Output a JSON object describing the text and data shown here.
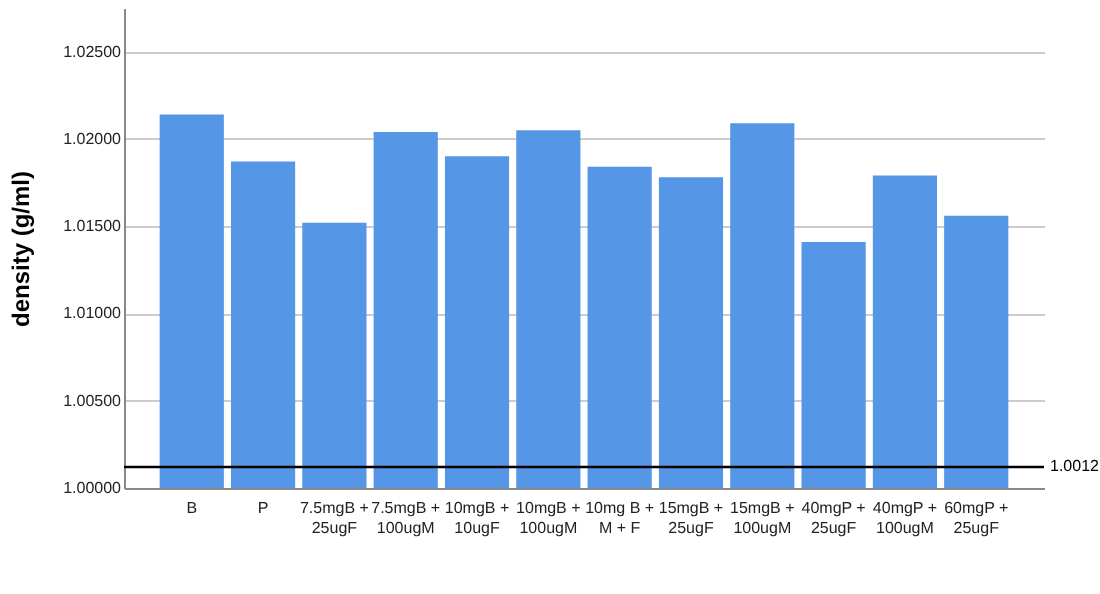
{
  "chart_data": {
    "type": "bar",
    "ylabel": "density (g/ml)",
    "categories": [
      "B",
      "P",
      "7.5mgB + 25ugF",
      "7.5mgB + 100ugM",
      "10mgB + 10ugF",
      "10mgB + 100ugM",
      "10mg B + M + F",
      "15mgB + 25ugF",
      "15mgB + 100ugM",
      "40mgP + 25ugF",
      "40mgP + 100ugM",
      "60mgP + 25ugF"
    ],
    "values": [
      1.0214,
      1.0187,
      1.0152,
      1.0204,
      1.019,
      1.0205,
      1.0184,
      1.0178,
      1.0209,
      1.0141,
      1.0179,
      1.0156
    ],
    "color": "#5596e6",
    "ylim": [
      1.0,
      1.0275
    ],
    "yticks": [
      {
        "value": 1.0,
        "label": "1.00000"
      },
      {
        "value": 1.005,
        "label": "1.00500"
      },
      {
        "value": 1.01,
        "label": "1.01000"
      },
      {
        "value": 1.015,
        "label": "1.01500"
      },
      {
        "value": 1.02,
        "label": "1.02000"
      },
      {
        "value": 1.025,
        "label": "1.02500"
      }
    ],
    "grid": "y",
    "ref_lines": [
      {
        "axis": "y",
        "value": 1.0012,
        "label": "1.0012",
        "color": "#000000"
      }
    ]
  }
}
